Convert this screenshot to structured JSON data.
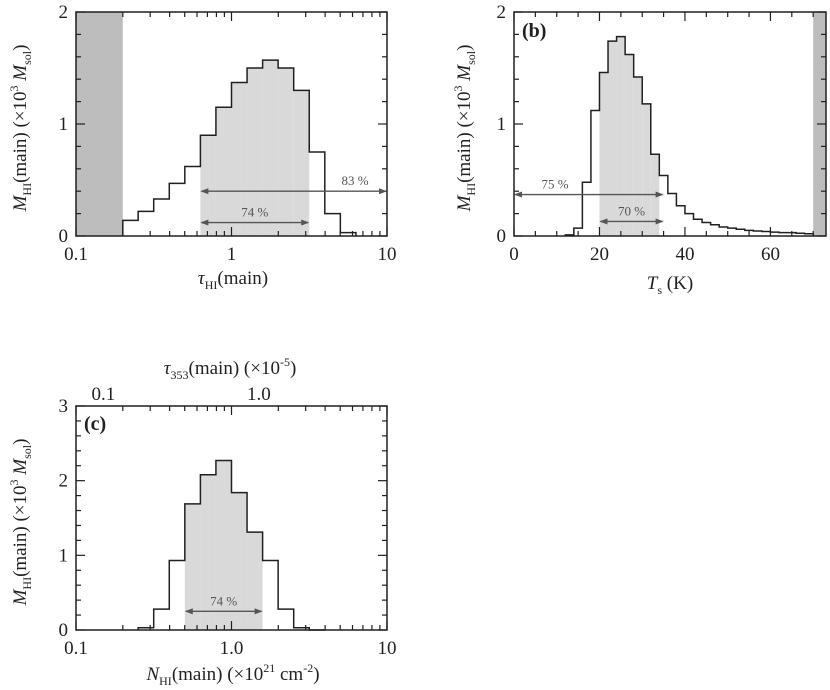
{
  "chart_data": [
    {
      "panel": "a",
      "type": "histogram",
      "xscale": "log",
      "xlim": [
        0.1,
        10
      ],
      "ylim": [
        0,
        2
      ],
      "xticks": [
        "0.1",
        "1",
        "10"
      ],
      "yticks": [
        "0",
        "1",
        "2"
      ],
      "xlabel": {
        "main": "τ",
        "sub": "HI",
        "rest": "(main)"
      },
      "ylabel": "M_HI(main) (×10^3 M_sol)",
      "bin_edges": [
        0.2,
        0.251,
        0.316,
        0.398,
        0.501,
        0.631,
        0.794,
        1.0,
        1.259,
        1.585,
        1.995,
        2.512,
        3.162,
        3.981,
        5.012,
        6.31
      ],
      "values": [
        0.14,
        0.22,
        0.33,
        0.47,
        0.62,
        0.9,
        1.15,
        1.37,
        1.5,
        1.57,
        1.5,
        1.3,
        0.75,
        0.2,
        0.03
      ],
      "shaded_range": [
        0.631,
        3.162
      ],
      "excluded_regions": [
        [
          0.1,
          0.2
        ]
      ],
      "annotations": [
        {
          "label": "74 %",
          "x_from": 0.631,
          "x_to": 3.162,
          "y": 0.12
        },
        {
          "label": "83 %",
          "x_from": 0.631,
          "x_to": 10,
          "y": 0.4
        }
      ]
    },
    {
      "panel": "b",
      "type": "histogram",
      "xscale": "linear",
      "xlim": [
        0,
        73
      ],
      "ylim": [
        0,
        2
      ],
      "xticks": [
        "0",
        "20",
        "40",
        "60"
      ],
      "yticks": [
        "0",
        "1",
        "2"
      ],
      "xlabel": {
        "main": "T",
        "sub": "s",
        "rest": "(K)"
      },
      "ylabel": "M_HI(main) (×10^3 M_sol)",
      "bin_edges": [
        12,
        14,
        16,
        18,
        20,
        22,
        24,
        26,
        28,
        30,
        32,
        34,
        36,
        38,
        40,
        42,
        44,
        46,
        48,
        50,
        52,
        54,
        56,
        58,
        60,
        62,
        64,
        66,
        68,
        70
      ],
      "values": [
        0.01,
        0.07,
        0.48,
        1.12,
        1.46,
        1.74,
        1.78,
        1.62,
        1.42,
        1.18,
        0.73,
        0.54,
        0.38,
        0.27,
        0.2,
        0.15,
        0.12,
        0.1,
        0.08,
        0.07,
        0.06,
        0.05,
        0.045,
        0.04,
        0.035,
        0.03,
        0.03,
        0.025,
        0.02
      ],
      "shaded_range": [
        20,
        35
      ],
      "excluded_regions": [
        [
          70,
          73
        ]
      ],
      "annotations": [
        {
          "label": "70 %",
          "x_from": 20,
          "x_to": 35,
          "y": 0.13
        },
        {
          "label": "75 %",
          "x_from": 0,
          "x_to": 35,
          "y": 0.37
        }
      ]
    },
    {
      "panel": "c",
      "type": "histogram",
      "xscale": "log",
      "xlim": [
        0.1,
        10
      ],
      "ylim": [
        0,
        3
      ],
      "xticks": [
        "0.1",
        "1.0",
        "10"
      ],
      "yticks": [
        "0",
        "1",
        "2",
        "3"
      ],
      "top_xticks": [
        "0.1",
        "1.0"
      ],
      "xlabel": {
        "main": "N",
        "sub": "HI",
        "rest": "(main) (×10",
        "sup": "21",
        "rest2": " cm",
        "sup2": "-2",
        "rest3": ")"
      },
      "top_xlabel": {
        "main": "τ",
        "sub": "353",
        "rest": "(main) (×10",
        "sup": "-5",
        "rest2": ")"
      },
      "ylabel": "M_HI(main) (×10^3 M_sol)",
      "bin_edges": [
        0.251,
        0.316,
        0.398,
        0.501,
        0.631,
        0.794,
        1.0,
        1.259,
        1.585,
        1.995,
        2.512,
        3.162,
        3.981
      ],
      "values": [
        0.03,
        0.28,
        0.93,
        1.69,
        2.08,
        2.27,
        1.84,
        1.31,
        0.93,
        0.28,
        0.03,
        0.0
      ],
      "shaded_range": [
        0.501,
        1.585
      ],
      "annotations": [
        {
          "label": "74 %",
          "x_from": 0.501,
          "x_to": 1.585,
          "y": 0.25
        }
      ]
    }
  ],
  "labels": {
    "panel_b": "(b)",
    "panel_c": "(c)",
    "ylabel_a": {
      "m": "M",
      "sub": "HI",
      "rest": "(main) (×10",
      "sup": "3",
      "m2": " M",
      "sub2": "sol",
      "end": ")"
    },
    "ylabel_b": {
      "m": "M",
      "sub": "HI",
      "rest": "(main) (×10",
      "sup": "3",
      "m2": " M",
      "sub2": "sol",
      "end": ")"
    },
    "ylabel_c": {
      "m": "M",
      "sub": "HI",
      "rest": "(main) (×10",
      "sup": "3",
      "m2": " M",
      "sub2": "sol",
      "end": ")"
    }
  },
  "colors": {
    "shade": "#d9d9d9",
    "excluded": "#bdbdbd",
    "line": "#231f20",
    "arrow": "#555555"
  }
}
